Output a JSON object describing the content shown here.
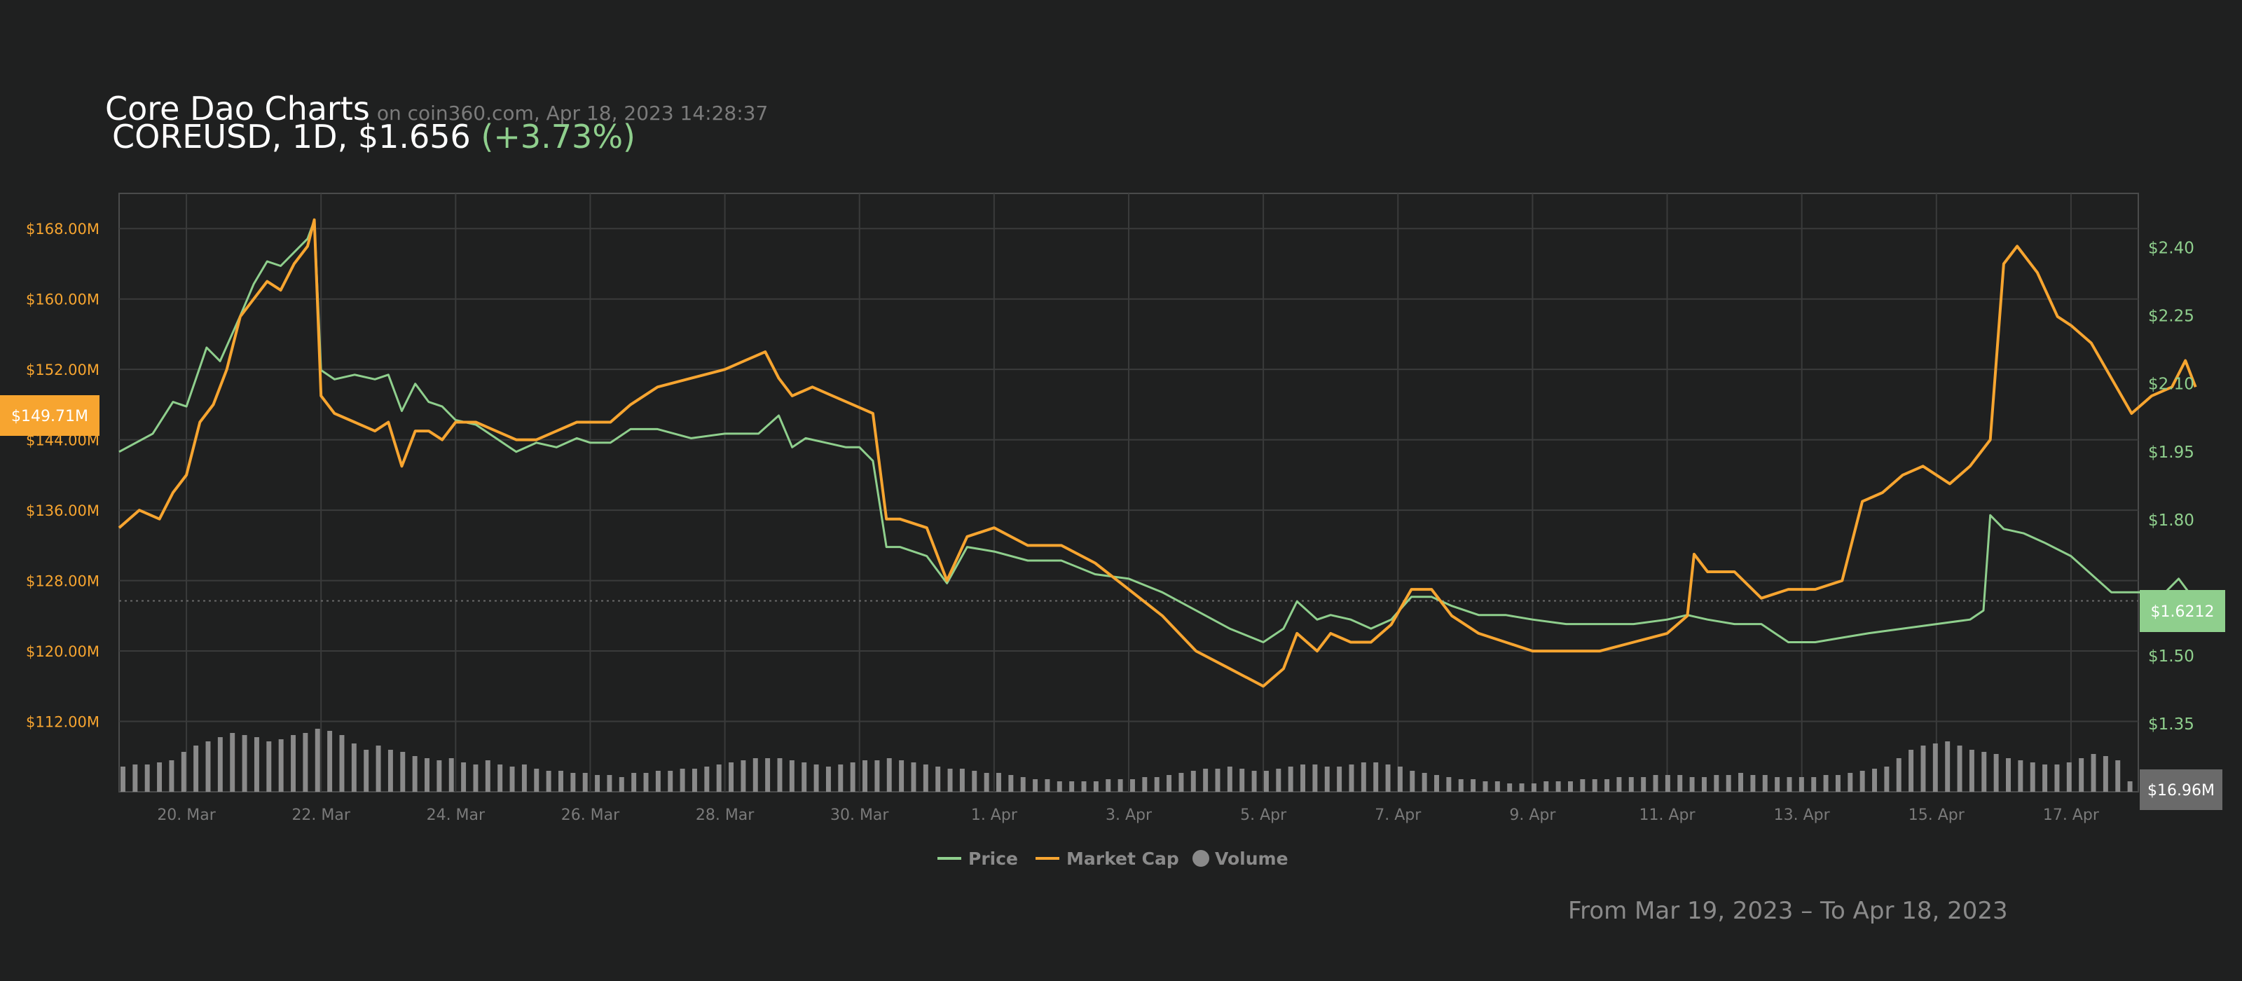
{
  "header": {
    "title": "Core Dao Charts",
    "source": "on coin360.com, Apr 18, 2023 14:28:37",
    "subtitle_prefix": "COREUSD, 1D, $1.656",
    "subtitle_change": "(+3.73%)"
  },
  "date_range": "From Mar 19, 2023 – To Apr 18, 2023",
  "colors": {
    "background": "#1f2020",
    "price": "#8fcf8d",
    "market_cap": "#f7a530",
    "volume": "#8a8a8a",
    "grid": "#3a3b3b",
    "left_axis_text": "#f7a530",
    "right_axis_text": "#8fcf8d",
    "x_axis_text": "#7a7a7a"
  },
  "badges": {
    "market_cap": "$149.71M",
    "price": "$1.6212",
    "volume": "$16.96M"
  },
  "chart_data": {
    "type": "line",
    "xlim": [
      0,
      30
    ],
    "x_ticks": [
      {
        "x": 1,
        "label": "20. Mar"
      },
      {
        "x": 3,
        "label": "22. Mar"
      },
      {
        "x": 5,
        "label": "24. Mar"
      },
      {
        "x": 7,
        "label": "26. Mar"
      },
      {
        "x": 9,
        "label": "28. Mar"
      },
      {
        "x": 11,
        "label": "30. Mar"
      },
      {
        "x": 13,
        "label": "1. Apr"
      },
      {
        "x": 15,
        "label": "3. Apr"
      },
      {
        "x": 17,
        "label": "5. Apr"
      },
      {
        "x": 19,
        "label": "7. Apr"
      },
      {
        "x": 21,
        "label": "9. Apr"
      },
      {
        "x": 23,
        "label": "11. Apr"
      },
      {
        "x": 25,
        "label": "13. Apr"
      },
      {
        "x": 27,
        "label": "15. Apr"
      },
      {
        "x": 29,
        "label": "17. Apr"
      }
    ],
    "left_axis": {
      "ticks": [
        112,
        120,
        128,
        136,
        144,
        152,
        160,
        168
      ],
      "labels": [
        "$112.00M",
        "$120.00M",
        "$128.00M",
        "$136.00M",
        "$144.00M",
        "$152.00M",
        "$160.00M",
        "$168.00M"
      ]
    },
    "right_axis": {
      "ticks": [
        1.35,
        1.5,
        1.65,
        1.8,
        1.95,
        2.1,
        2.25,
        2.4
      ],
      "labels": [
        "$1.35",
        "$1.50",
        "",
        "$1.80",
        "$1.95",
        "$2.10",
        "$2.25",
        "$2.40"
      ]
    },
    "legend": [
      {
        "name": "Price",
        "marker": "line"
      },
      {
        "name": "Market Cap",
        "marker": "line"
      },
      {
        "name": "Volume",
        "marker": "dot"
      }
    ],
    "legend_position": "bottom-center",
    "grid": true,
    "current_price_line": 1.6212,
    "series": [
      {
        "name": "Price",
        "axis": "right",
        "points": [
          [
            0,
            1.95
          ],
          [
            0.5,
            1.99
          ],
          [
            0.8,
            2.06
          ],
          [
            1,
            2.05
          ],
          [
            1.3,
            2.18
          ],
          [
            1.5,
            2.15
          ],
          [
            1.8,
            2.25
          ],
          [
            2,
            2.32
          ],
          [
            2.2,
            2.37
          ],
          [
            2.4,
            2.36
          ],
          [
            2.6,
            2.39
          ],
          [
            2.8,
            2.42
          ],
          [
            2.9,
            2.46
          ],
          [
            3.0,
            2.13
          ],
          [
            3.2,
            2.11
          ],
          [
            3.5,
            2.12
          ],
          [
            3.8,
            2.11
          ],
          [
            4,
            2.12
          ],
          [
            4.2,
            2.04
          ],
          [
            4.4,
            2.1
          ],
          [
            4.6,
            2.06
          ],
          [
            4.8,
            2.05
          ],
          [
            5,
            2.02
          ],
          [
            5.3,
            2.01
          ],
          [
            5.6,
            1.98
          ],
          [
            5.9,
            1.95
          ],
          [
            6.2,
            1.97
          ],
          [
            6.5,
            1.96
          ],
          [
            6.8,
            1.98
          ],
          [
            7,
            1.97
          ],
          [
            7.3,
            1.97
          ],
          [
            7.6,
            2.0
          ],
          [
            8,
            2.0
          ],
          [
            8.5,
            1.98
          ],
          [
            9,
            1.99
          ],
          [
            9.5,
            1.99
          ],
          [
            9.8,
            2.03
          ],
          [
            10,
            1.96
          ],
          [
            10.2,
            1.98
          ],
          [
            10.5,
            1.97
          ],
          [
            10.8,
            1.96
          ],
          [
            11,
            1.96
          ],
          [
            11.2,
            1.93
          ],
          [
            11.4,
            1.74
          ],
          [
            11.6,
            1.74
          ],
          [
            12,
            1.72
          ],
          [
            12.3,
            1.66
          ],
          [
            12.6,
            1.74
          ],
          [
            13,
            1.73
          ],
          [
            13.5,
            1.71
          ],
          [
            14,
            1.71
          ],
          [
            14.5,
            1.68
          ],
          [
            15,
            1.67
          ],
          [
            15.5,
            1.64
          ],
          [
            16,
            1.6
          ],
          [
            16.5,
            1.56
          ],
          [
            17,
            1.53
          ],
          [
            17.3,
            1.56
          ],
          [
            17.5,
            1.62
          ],
          [
            17.8,
            1.58
          ],
          [
            18,
            1.59
          ],
          [
            18.3,
            1.58
          ],
          [
            18.6,
            1.56
          ],
          [
            18.9,
            1.58
          ],
          [
            19.2,
            1.63
          ],
          [
            19.5,
            1.63
          ],
          [
            19.8,
            1.61
          ],
          [
            20.2,
            1.59
          ],
          [
            20.6,
            1.59
          ],
          [
            21,
            1.58
          ],
          [
            21.5,
            1.57
          ],
          [
            22,
            1.57
          ],
          [
            22.5,
            1.57
          ],
          [
            23,
            1.58
          ],
          [
            23.3,
            1.59
          ],
          [
            23.6,
            1.58
          ],
          [
            24,
            1.57
          ],
          [
            24.4,
            1.57
          ],
          [
            24.8,
            1.53
          ],
          [
            25.2,
            1.53
          ],
          [
            25.6,
            1.54
          ],
          [
            26,
            1.55
          ],
          [
            26.5,
            1.56
          ],
          [
            27,
            1.57
          ],
          [
            27.5,
            1.58
          ],
          [
            27.7,
            1.6
          ],
          [
            27.8,
            1.81
          ],
          [
            28,
            1.78
          ],
          [
            28.3,
            1.77
          ],
          [
            28.6,
            1.75
          ],
          [
            29,
            1.72
          ],
          [
            29.3,
            1.68
          ],
          [
            29.6,
            1.64
          ],
          [
            30,
            1.64
          ],
          [
            30.4,
            1.64
          ],
          [
            30.6,
            1.67
          ],
          [
            30.8,
            1.63
          ]
        ]
      },
      {
        "name": "Market Cap",
        "axis": "left",
        "points": [
          [
            0,
            134
          ],
          [
            0.3,
            136
          ],
          [
            0.6,
            135
          ],
          [
            0.8,
            138
          ],
          [
            1,
            140
          ],
          [
            1.2,
            146
          ],
          [
            1.4,
            148
          ],
          [
            1.6,
            152
          ],
          [
            1.8,
            158
          ],
          [
            2,
            160
          ],
          [
            2.2,
            162
          ],
          [
            2.4,
            161
          ],
          [
            2.6,
            164
          ],
          [
            2.8,
            166
          ],
          [
            2.9,
            169
          ],
          [
            3.0,
            149
          ],
          [
            3.2,
            147
          ],
          [
            3.5,
            146
          ],
          [
            3.8,
            145
          ],
          [
            4,
            146
          ],
          [
            4.2,
            141
          ],
          [
            4.4,
            145
          ],
          [
            4.6,
            145
          ],
          [
            4.8,
            144
          ],
          [
            5,
            146
          ],
          [
            5.3,
            146
          ],
          [
            5.6,
            145
          ],
          [
            5.9,
            144
          ],
          [
            6.2,
            144
          ],
          [
            6.5,
            145
          ],
          [
            6.8,
            146
          ],
          [
            7,
            146
          ],
          [
            7.3,
            146
          ],
          [
            7.6,
            148
          ],
          [
            8,
            150
          ],
          [
            8.5,
            151
          ],
          [
            9,
            152
          ],
          [
            9.3,
            153
          ],
          [
            9.6,
            154
          ],
          [
            9.8,
            151
          ],
          [
            10,
            149
          ],
          [
            10.3,
            150
          ],
          [
            10.6,
            149
          ],
          [
            10.9,
            148
          ],
          [
            11.2,
            147
          ],
          [
            11.4,
            135
          ],
          [
            11.6,
            135
          ],
          [
            12,
            134
          ],
          [
            12.3,
            128
          ],
          [
            12.6,
            133
          ],
          [
            13,
            134
          ],
          [
            13.5,
            132
          ],
          [
            14,
            132
          ],
          [
            14.5,
            130
          ],
          [
            15,
            127
          ],
          [
            15.5,
            124
          ],
          [
            16,
            120
          ],
          [
            16.5,
            118
          ],
          [
            17,
            116
          ],
          [
            17.3,
            118
          ],
          [
            17.5,
            122
          ],
          [
            17.8,
            120
          ],
          [
            18,
            122
          ],
          [
            18.3,
            121
          ],
          [
            18.6,
            121
          ],
          [
            18.9,
            123
          ],
          [
            19.2,
            127
          ],
          [
            19.5,
            127
          ],
          [
            19.8,
            124
          ],
          [
            20.2,
            122
          ],
          [
            20.6,
            121
          ],
          [
            21,
            120
          ],
          [
            21.5,
            120
          ],
          [
            22,
            120
          ],
          [
            22.5,
            121
          ],
          [
            23,
            122
          ],
          [
            23.3,
            124
          ],
          [
            23.4,
            131
          ],
          [
            23.6,
            129
          ],
          [
            24,
            129
          ],
          [
            24.4,
            126
          ],
          [
            24.8,
            127
          ],
          [
            25.2,
            127
          ],
          [
            25.6,
            128
          ],
          [
            25.9,
            137
          ],
          [
            26.2,
            138
          ],
          [
            26.5,
            140
          ],
          [
            26.8,
            141
          ],
          [
            27.2,
            139
          ],
          [
            27.5,
            141
          ],
          [
            27.8,
            144
          ],
          [
            28,
            164
          ],
          [
            28.2,
            166
          ],
          [
            28.5,
            163
          ],
          [
            28.8,
            158
          ],
          [
            29,
            157
          ],
          [
            29.3,
            155
          ],
          [
            29.6,
            151
          ],
          [
            29.9,
            147
          ],
          [
            30.2,
            149
          ],
          [
            30.5,
            150
          ],
          [
            30.7,
            153
          ],
          [
            30.85,
            150
          ]
        ]
      }
    ],
    "volume": {
      "name": "Volume",
      "values": [
        0.12,
        0.13,
        0.13,
        0.14,
        0.15,
        0.19,
        0.22,
        0.24,
        0.26,
        0.28,
        0.27,
        0.26,
        0.24,
        0.25,
        0.27,
        0.28,
        0.3,
        0.29,
        0.27,
        0.23,
        0.2,
        0.22,
        0.2,
        0.19,
        0.17,
        0.16,
        0.15,
        0.16,
        0.14,
        0.13,
        0.15,
        0.13,
        0.12,
        0.13,
        0.11,
        0.1,
        0.1,
        0.09,
        0.09,
        0.08,
        0.08,
        0.07,
        0.09,
        0.09,
        0.1,
        0.1,
        0.11,
        0.11,
        0.12,
        0.13,
        0.14,
        0.15,
        0.16,
        0.16,
        0.16,
        0.15,
        0.14,
        0.13,
        0.12,
        0.13,
        0.14,
        0.15,
        0.15,
        0.16,
        0.15,
        0.14,
        0.13,
        0.12,
        0.11,
        0.11,
        0.1,
        0.09,
        0.09,
        0.08,
        0.07,
        0.06,
        0.06,
        0.05,
        0.05,
        0.05,
        0.05,
        0.06,
        0.06,
        0.06,
        0.07,
        0.07,
        0.08,
        0.09,
        0.1,
        0.11,
        0.11,
        0.12,
        0.11,
        0.1,
        0.1,
        0.11,
        0.12,
        0.13,
        0.13,
        0.12,
        0.12,
        0.13,
        0.14,
        0.14,
        0.13,
        0.12,
        0.1,
        0.09,
        0.08,
        0.07,
        0.06,
        0.06,
        0.05,
        0.05,
        0.04,
        0.04,
        0.04,
        0.05,
        0.05,
        0.05,
        0.06,
        0.06,
        0.06,
        0.07,
        0.07,
        0.07,
        0.08,
        0.08,
        0.08,
        0.07,
        0.07,
        0.08,
        0.08,
        0.09,
        0.08,
        0.08,
        0.07,
        0.07,
        0.07,
        0.07,
        0.08,
        0.08,
        0.09,
        0.1,
        0.11,
        0.12,
        0.16,
        0.2,
        0.22,
        0.23,
        0.24,
        0.22,
        0.2,
        0.19,
        0.18,
        0.16,
        0.15,
        0.14,
        0.13,
        0.13,
        0.14,
        0.16,
        0.18,
        0.17,
        0.15,
        0.05
      ]
    }
  }
}
